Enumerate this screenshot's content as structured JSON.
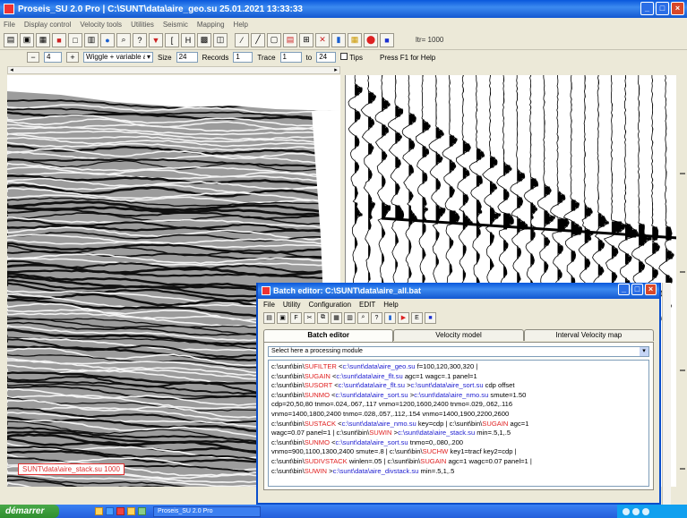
{
  "window": {
    "title": "Proseis_SU 2.0 Pro | C:\\SUNT\\data\\aire_geo.su 25.01.2021 13:33:33",
    "min": "_",
    "max": "□",
    "close": "×"
  },
  "menu": [
    "File",
    "Display control",
    "Velocity tools",
    "Utilities",
    "Seismic",
    "Mapping",
    "Help"
  ],
  "toolbar": {
    "info": "ltr= 1000"
  },
  "toolbar2": {
    "page": "4",
    "wiggle_mode": "Wiggle + variable area",
    "size_label": "Size",
    "size_value": "24",
    "records_label": "Records",
    "records_value": "1",
    "trace_label": "Trace",
    "trace_value": "1",
    "to_label": "to",
    "to_value": "24",
    "tips_label": "Tips",
    "hint": "Press F1 for Help"
  },
  "left_panel": {
    "file_label": "SUNT\\data\\aire_stack.su 1000"
  },
  "dialog": {
    "title": "Batch editor: C:\\SUNT\\data\\aire_all.bat",
    "menu": [
      "File",
      "Utility",
      "Configuration",
      "EDIT",
      "Help"
    ],
    "tabs": [
      "Batch editor",
      "Velocity model",
      "Interval Velocity map"
    ],
    "combo": "Select here a processing module",
    "lines": [
      [
        [
          "k",
          "c:\\sunt\\bin\\"
        ],
        [
          "m",
          "SUFILTER"
        ],
        [
          "k",
          " <"
        ],
        [
          "f",
          "c:\\sunt\\data\\aire_geo.su"
        ],
        [
          "k",
          " f=100,120,300,320 |"
        ]
      ],
      [
        [
          "k",
          "c:\\sunt\\bin\\"
        ],
        [
          "m",
          "SUGAIN"
        ],
        [
          "k",
          " <"
        ],
        [
          "f",
          "c:\\sunt\\data\\aire_flt.su"
        ],
        [
          "k",
          " agc=1 wagc=.1 panel=1"
        ]
      ],
      [
        [
          "k",
          "c:\\sunt\\bin\\"
        ],
        [
          "m",
          "SUSORT"
        ],
        [
          "k",
          " <"
        ],
        [
          "f",
          "c:\\sunt\\data\\aire_flt.su"
        ],
        [
          "k",
          " >"
        ],
        [
          "f",
          "c:\\sunt\\data\\aire_sort.su"
        ],
        [
          "k",
          " cdp offset"
        ]
      ],
      [
        [
          "k",
          "c:\\sunt\\bin\\"
        ],
        [
          "m",
          "SUNMO"
        ],
        [
          "k",
          " <"
        ],
        [
          "f",
          "c:\\sunt\\data\\aire_sort.su"
        ],
        [
          "k",
          " >"
        ],
        [
          "f",
          "c:\\sunt\\data\\aire_nmo.su"
        ],
        [
          "k",
          " smute=1.50"
        ]
      ],
      [
        [
          "k",
          "cdp=20,50,80 tnmo=.024,.067,.117 vnmo=1200,1600,2400 tnmo=.029,.062,.116"
        ]
      ],
      [
        [
          "k",
          "vnmo=1400,1800,2400 tnmo=.028,.057,.112,.154 vnmo=1400,1900,2200,2600"
        ]
      ],
      [
        [
          "k",
          "c:\\sunt\\bin\\"
        ],
        [
          "m",
          "SUSTACK"
        ],
        [
          "k",
          " <"
        ],
        [
          "f",
          "c:\\sunt\\data\\aire_nmo.su"
        ],
        [
          "k",
          " key=cdp | c:\\sunt\\bin\\"
        ],
        [
          "m",
          "SUGAIN"
        ],
        [
          "k",
          " agc=1"
        ]
      ],
      [
        [
          "k",
          "wagc=0.07 panel=1 | c:\\sunt\\bin\\"
        ],
        [
          "m",
          "SUWIN"
        ],
        [
          "k",
          " >"
        ],
        [
          "f",
          "c:\\sunt\\data\\aire_stack.su"
        ],
        [
          "k",
          " min=.5,1,.5"
        ]
      ],
      [
        [
          "k",
          "c:\\sunt\\bin\\"
        ],
        [
          "m",
          "SUNMO"
        ],
        [
          "k",
          " <"
        ],
        [
          "f",
          "c:\\sunt\\data\\aire_sort.su"
        ],
        [
          "k",
          " tnmo=0,.080,.200"
        ]
      ],
      [
        [
          "k",
          "vnmo=900,1100,1300,2400 smute=.8 | c:\\sunt\\bin\\"
        ],
        [
          "m",
          "SUCHW"
        ],
        [
          "k",
          " key1=tracf key2=cdp |"
        ]
      ],
      [
        [
          "k",
          "c:\\sunt\\bin\\"
        ],
        [
          "m",
          "SUDIVSTACK"
        ],
        [
          "k",
          " winlen=.05 | c:\\sunt\\bin\\"
        ],
        [
          "m",
          "SUGAIN"
        ],
        [
          "k",
          " agc=1 wagc=0.07 panel=1 |"
        ]
      ],
      [
        [
          "k",
          "c:\\sunt\\bin\\"
        ],
        [
          "m",
          "SUWIN"
        ],
        [
          "k",
          " >"
        ],
        [
          "f",
          "c:\\sunt\\data\\aire_divstack.su"
        ],
        [
          "k",
          " min=.5,1,.5"
        ]
      ]
    ]
  },
  "taskbar": {
    "start": "démarrer",
    "task": "Proseis_SU 2.0 Pro"
  },
  "colors": {
    "title_blue": "#0a58dc",
    "keyword_red": "#e02020",
    "file_blue": "#2020d0",
    "start_green": "#2f8f2f"
  }
}
